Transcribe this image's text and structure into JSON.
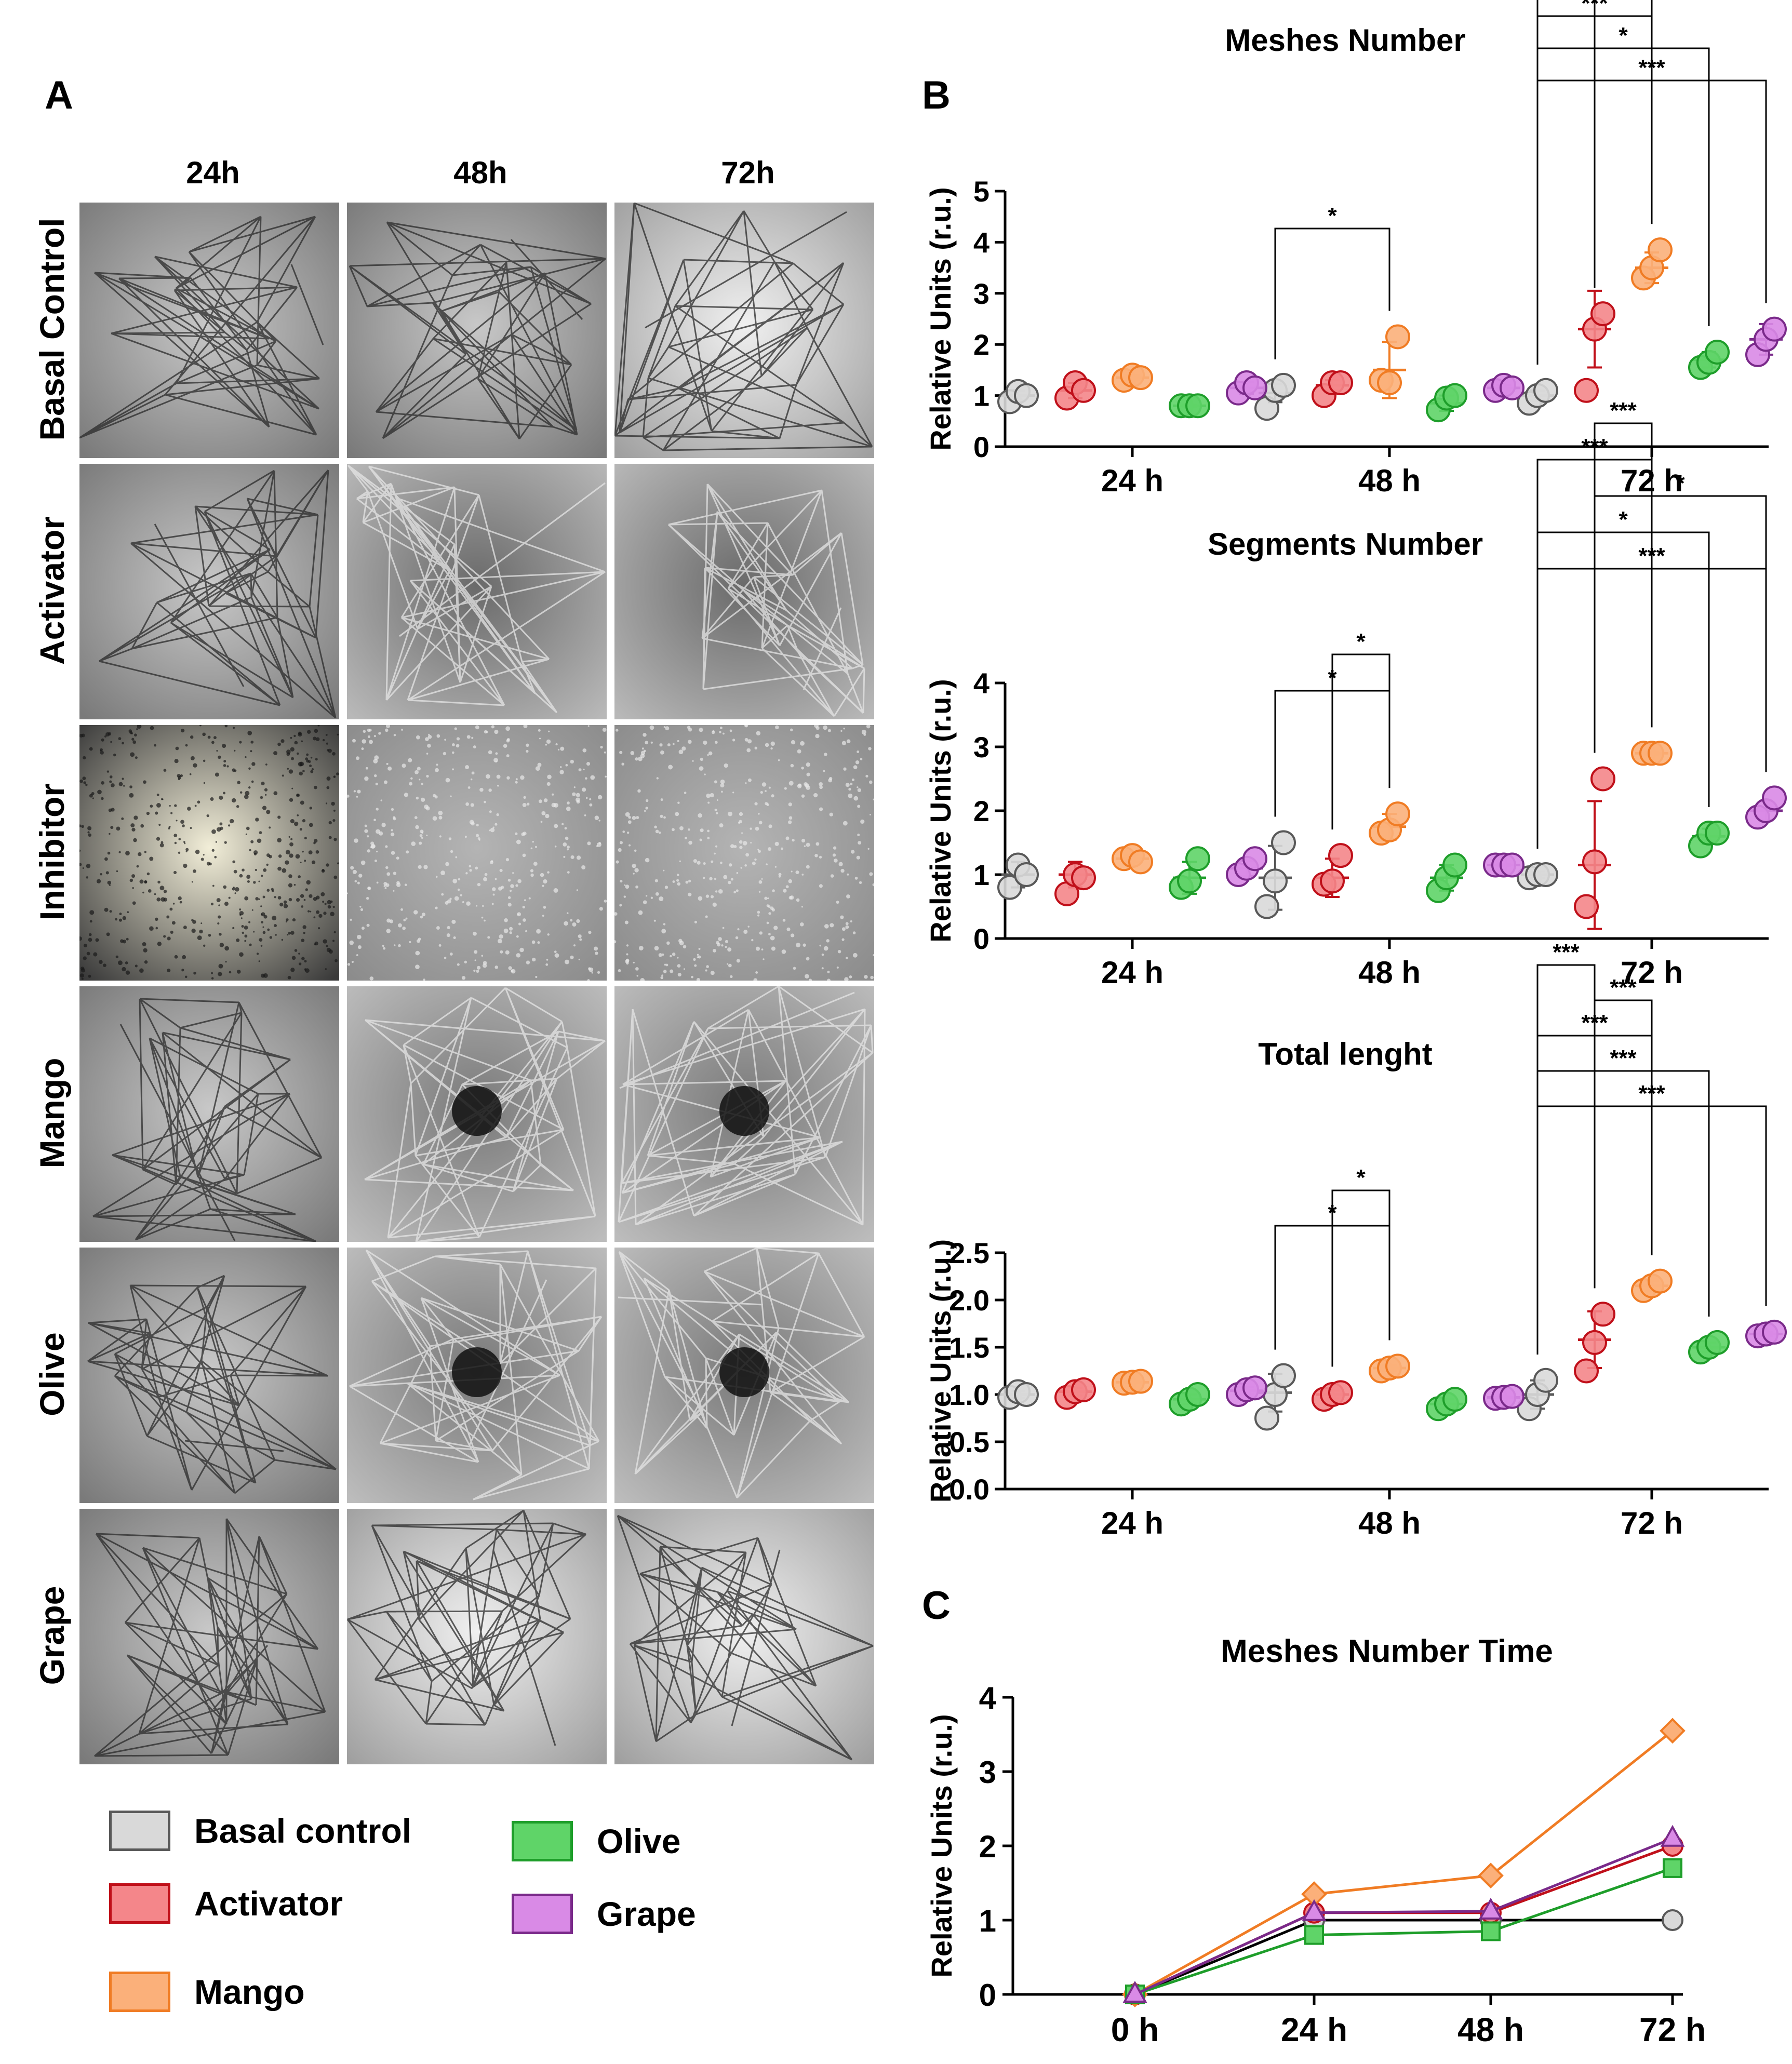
{
  "panel_labels": {
    "a": "A",
    "b": "B",
    "c": "C"
  },
  "micrograph_grid": {
    "columns": [
      "24h",
      "48h",
      "72h"
    ],
    "rows": [
      "Basal Control",
      "Activator",
      "Inhibitor",
      "Mango",
      "Olive",
      "Grape"
    ],
    "tile_style": {
      "Basal Control": [
        "network",
        "network",
        "network-light"
      ],
      "Activator": [
        "network",
        "ring-dark",
        "ring-dark"
      ],
      "Inhibitor": [
        "dotted-bright",
        "grainy",
        "grainy"
      ],
      "Mango": [
        "network",
        "ring-center",
        "ring-center"
      ],
      "Olive": [
        "network",
        "star-center",
        "star-center"
      ],
      "Grape": [
        "network",
        "network-light",
        "network-light"
      ]
    }
  },
  "groups": [
    {
      "name": "Basal control",
      "fill": "#d9d9d9",
      "stroke": "#595959"
    },
    {
      "name": "Activator",
      "fill": "#f4868a",
      "stroke": "#c0101a"
    },
    {
      "name": "Mango",
      "fill": "#fbb07a",
      "stroke": "#f07c24"
    },
    {
      "name": "Olive",
      "fill": "#5fd468",
      "stroke": "#1e9e2a"
    },
    {
      "name": "Grape",
      "fill": "#d98ae6",
      "stroke": "#7a2a8a"
    }
  ],
  "legend": {
    "items": [
      "Basal control",
      "Activator",
      "Mango",
      "Olive",
      "Grape"
    ]
  },
  "chart_data": [
    {
      "id": "meshes",
      "type": "scatter",
      "title": "Meshes Number",
      "ylabel": "Relative Units (r.u.)",
      "categories": [
        "24 h",
        "48 h",
        "72 h"
      ],
      "ylim": [
        0,
        5
      ],
      "yticks": [
        "0",
        "1",
        "2",
        "3",
        "4",
        "5"
      ],
      "series": [
        {
          "name": "Basal control",
          "points": [
            [
              0.88,
              1.08,
              1.0
            ],
            [
              0.75,
              1.1,
              1.2
            ],
            [
              0.85,
              1.0,
              1.1
            ]
          ],
          "mean": [
            1.0,
            1.05,
            1.0
          ],
          "sd": [
            0.1,
            0.18,
            0.1
          ]
        },
        {
          "name": "Activator",
          "points": [
            [
              0.95,
              1.25,
              1.1
            ],
            [
              1.0,
              1.25,
              1.25
            ],
            [
              1.1,
              2.3,
              2.6
            ]
          ],
          "mean": [
            1.1,
            1.2,
            2.3
          ],
          "sd": [
            0.15,
            0.1,
            0.75
          ]
        },
        {
          "name": "Mango",
          "points": [
            [
              1.3,
              1.4,
              1.35
            ],
            [
              1.3,
              1.25,
              2.15
            ],
            [
              3.3,
              3.5,
              3.85
            ]
          ],
          "mean": [
            1.35,
            1.5,
            3.5
          ],
          "sd": [
            0.05,
            0.55,
            0.3
          ]
        },
        {
          "name": "Olive",
          "points": [
            [
              0.8,
              0.8,
              0.8
            ],
            [
              0.72,
              0.95,
              1.0
            ],
            [
              1.55,
              1.65,
              1.85
            ]
          ],
          "mean": [
            0.8,
            0.85,
            1.7
          ],
          "sd": [
            0.02,
            0.15,
            0.15
          ]
        },
        {
          "name": "Grape",
          "points": [
            [
              1.05,
              1.25,
              1.15
            ],
            [
              1.1,
              1.2,
              1.15
            ],
            [
              1.8,
              2.1,
              2.3
            ]
          ],
          "mean": [
            1.15,
            1.15,
            2.1
          ],
          "sd": [
            0.12,
            0.05,
            0.3
          ]
        }
      ],
      "significance": [
        {
          "from": "48 h|Basal control",
          "to": "48 h|Mango",
          "label": "*"
        },
        {
          "from": "72 h|Basal control",
          "to": "72 h|Grape",
          "label": "***"
        },
        {
          "from": "72 h|Basal control",
          "to": "72 h|Olive",
          "label": "*"
        },
        {
          "from": "72 h|Basal control",
          "to": "72 h|Mango",
          "label": "***"
        },
        {
          "from": "72 h|Basal control",
          "to": "72 h|Activator",
          "label": "***"
        },
        {
          "from": "72 h|Activator",
          "to": "72 h|Mango",
          "label": "***"
        }
      ]
    },
    {
      "id": "segments",
      "type": "scatter",
      "title": "Segments Number",
      "ylabel": "Relative Units (r.u.)",
      "categories": [
        "24 h",
        "48 h",
        "72 h"
      ],
      "ylim": [
        0,
        4
      ],
      "yticks": [
        "0",
        "1",
        "2",
        "3",
        "4"
      ],
      "series": [
        {
          "name": "Basal control",
          "points": [
            [
              0.8,
              1.15,
              1.0
            ],
            [
              0.5,
              0.9,
              1.5
            ],
            [
              0.95,
              1.0,
              1.0
            ]
          ],
          "mean": [
            1.0,
            0.95,
            1.0
          ],
          "sd": [
            0.2,
            0.5,
            0.05
          ]
        },
        {
          "name": "Activator",
          "points": [
            [
              0.7,
              1.0,
              0.95
            ],
            [
              0.85,
              0.9,
              1.3
            ],
            [
              0.5,
              1.2,
              2.5
            ]
          ],
          "mean": [
            1.0,
            0.95,
            1.15
          ],
          "sd": [
            0.2,
            0.3,
            1.0
          ]
        },
        {
          "name": "Mango",
          "points": [
            [
              1.25,
              1.3,
              1.2
            ],
            [
              1.65,
              1.7,
              1.95
            ],
            [
              2.9,
              2.9,
              2.9
            ]
          ],
          "mean": [
            1.25,
            1.75,
            2.9
          ],
          "sd": [
            0.05,
            0.2,
            0.02
          ]
        },
        {
          "name": "Olive",
          "points": [
            [
              0.8,
              0.9,
              1.25
            ],
            [
              0.75,
              0.95,
              1.15
            ],
            [
              1.45,
              1.65,
              1.65
            ]
          ],
          "mean": [
            0.95,
            0.95,
            1.6
          ],
          "sd": [
            0.25,
            0.2,
            0.12
          ]
        },
        {
          "name": "Grape",
          "points": [
            [
              1.0,
              1.1,
              1.25
            ],
            [
              1.15,
              1.15,
              1.15
            ],
            [
              1.9,
              2.0,
              2.2
            ]
          ],
          "mean": [
            1.1,
            1.15,
            2.0
          ],
          "sd": [
            0.12,
            0.02,
            0.15
          ]
        }
      ],
      "significance": [
        {
          "from": "48 h|Basal control",
          "to": "48 h|Mango",
          "label": "*"
        },
        {
          "from": "48 h|Activator",
          "to": "48 h|Mango",
          "label": "*"
        },
        {
          "from": "72 h|Basal control",
          "to": "72 h|Grape",
          "label": "***"
        },
        {
          "from": "72 h|Basal control",
          "to": "72 h|Olive",
          "label": "*"
        },
        {
          "from": "72 h|Activator",
          "to": "72 h|Grape",
          "label": "*"
        },
        {
          "from": "72 h|Basal control",
          "to": "72 h|Mango",
          "label": "***"
        },
        {
          "from": "72 h|Activator",
          "to": "72 h|Mango",
          "label": "***"
        }
      ]
    },
    {
      "id": "length",
      "type": "scatter",
      "title": "Total lenght",
      "ylabel": "Relative Units (r.u.)",
      "categories": [
        "24 h",
        "48 h",
        "72 h"
      ],
      "ylim": [
        0,
        2.5
      ],
      "yticks": [
        "0.0",
        "0.5",
        "1.0",
        "1.5",
        "2.0",
        "2.5"
      ],
      "series": [
        {
          "name": "Basal control",
          "points": [
            [
              0.97,
              1.03,
              1.0
            ],
            [
              0.75,
              1.0,
              1.2
            ],
            [
              0.85,
              1.0,
              1.15
            ]
          ],
          "mean": [
            1.0,
            1.02,
            1.0
          ],
          "sd": [
            0.04,
            0.2,
            0.15
          ]
        },
        {
          "name": "Activator",
          "points": [
            [
              0.97,
              1.03,
              1.05
            ],
            [
              0.95,
              1.0,
              1.02
            ],
            [
              1.25,
              1.55,
              1.85
            ]
          ],
          "mean": [
            1.03,
            1.0,
            1.58
          ],
          "sd": [
            0.04,
            0.04,
            0.3
          ]
        },
        {
          "name": "Mango",
          "points": [
            [
              1.12,
              1.13,
              1.14
            ],
            [
              1.25,
              1.28,
              1.3
            ],
            [
              2.1,
              2.15,
              2.2
            ]
          ],
          "mean": [
            1.13,
            1.28,
            2.15
          ],
          "sd": [
            0.01,
            0.03,
            0.05
          ]
        },
        {
          "name": "Olive",
          "points": [
            [
              0.9,
              0.95,
              1.0
            ],
            [
              0.85,
              0.9,
              0.95
            ],
            [
              1.45,
              1.5,
              1.55
            ]
          ],
          "mean": [
            0.95,
            0.9,
            1.5
          ],
          "sd": [
            0.05,
            0.05,
            0.05
          ]
        },
        {
          "name": "Grape",
          "points": [
            [
              1.0,
              1.05,
              1.07
            ],
            [
              0.96,
              0.97,
              0.98
            ],
            [
              1.62,
              1.64,
              1.66
            ]
          ],
          "mean": [
            1.04,
            0.97,
            1.64
          ],
          "sd": [
            0.04,
            0.01,
            0.02
          ]
        }
      ],
      "significance": [
        {
          "from": "48 h|Basal control",
          "to": "48 h|Mango",
          "label": "*"
        },
        {
          "from": "48 h|Activator",
          "to": "48 h|Mango",
          "label": "*"
        },
        {
          "from": "72 h|Basal control",
          "to": "72 h|Grape",
          "label": "***"
        },
        {
          "from": "72 h|Basal control",
          "to": "72 h|Olive",
          "label": "***"
        },
        {
          "from": "72 h|Basal control",
          "to": "72 h|Mango",
          "label": "***"
        },
        {
          "from": "72 h|Activator",
          "to": "72 h|Mango",
          "label": "***"
        },
        {
          "from": "72 h|Basal control",
          "to": "72 h|Activator",
          "label": "***"
        }
      ]
    },
    {
      "id": "time",
      "type": "line",
      "title": "Meshes Number Time",
      "ylabel": "Relative Units (r.u.)",
      "categories": [
        "0 h",
        "24 h",
        "48 h",
        "72 h"
      ],
      "ylim": [
        0,
        4
      ],
      "yticks": [
        "0",
        "1",
        "2",
        "3",
        "4"
      ],
      "series": [
        {
          "name": "Basal control",
          "marker": "circle",
          "line": "#000000",
          "values": [
            0,
            1.0,
            1.0,
            1.0
          ]
        },
        {
          "name": "Activator",
          "marker": "circle",
          "line": "#c0101a",
          "values": [
            0,
            1.1,
            1.1,
            2.0
          ]
        },
        {
          "name": "Mango",
          "marker": "diamond",
          "line": "#f07c24",
          "values": [
            0,
            1.35,
            1.6,
            3.55
          ]
        },
        {
          "name": "Olive",
          "marker": "square",
          "line": "#1e9e2a",
          "values": [
            0,
            0.8,
            0.85,
            1.7
          ]
        },
        {
          "name": "Grape",
          "marker": "triangle",
          "line": "#7a2a8a",
          "values": [
            0,
            1.1,
            1.12,
            2.1
          ]
        }
      ]
    }
  ]
}
